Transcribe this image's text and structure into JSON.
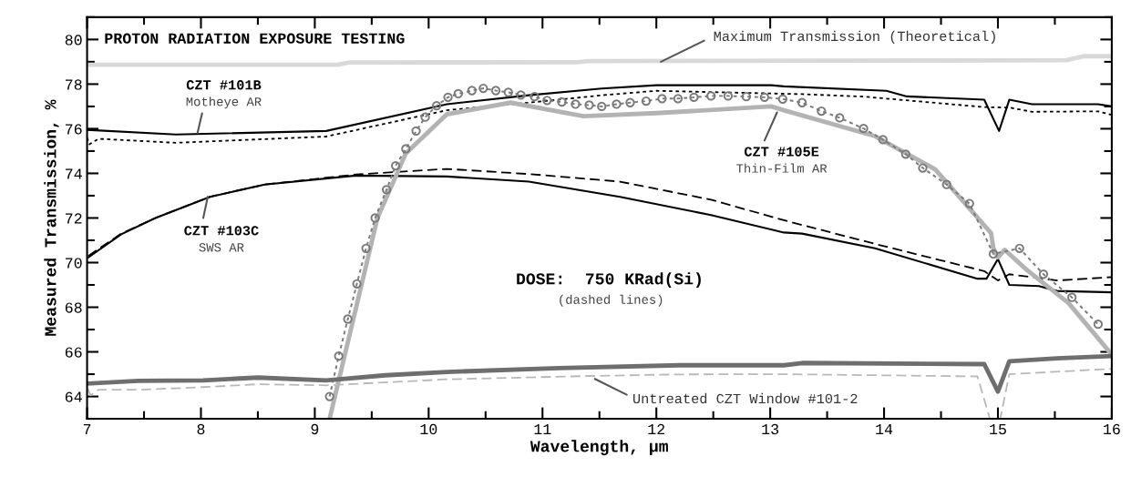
{
  "chart_data": {
    "type": "line",
    "xlabel": "Wavelength, µm",
    "ylabel": "Measured Transmission, %",
    "xlim": [
      7,
      16
    ],
    "ylim": [
      63,
      81
    ],
    "xticks": [
      7,
      {
        "value": 7.5,
        "label": null
      },
      8,
      {
        "value": 8.5,
        "label": null
      },
      9,
      {
        "value": 9.5,
        "label": null
      },
      10,
      {
        "value": 10.5,
        "label": null
      },
      11,
      {
        "value": 11.5,
        "label": null
      },
      12,
      {
        "value": 12.5,
        "label": null
      },
      13,
      {
        "value": 13.5,
        "label": null
      },
      14,
      {
        "value": 14.5,
        "label": null
      },
      15,
      {
        "value": 15.5,
        "label": null
      },
      16
    ],
    "yticks": [
      {
        "value": 63,
        "label": null
      },
      64,
      {
        "value": 65,
        "label": null
      },
      66,
      {
        "value": 67,
        "label": null
      },
      68,
      {
        "value": 69,
        "label": null
      },
      70,
      {
        "value": 71,
        "label": null
      },
      72,
      {
        "value": 73,
        "label": null
      },
      74,
      {
        "value": 75,
        "label": null
      },
      76,
      {
        "value": 77,
        "label": null
      },
      78,
      {
        "value": 79,
        "label": null
      },
      80,
      {
        "value": 81,
        "label": null
      }
    ],
    "grid": false,
    "legend": false,
    "series": [
      {
        "color": "#d9d9d9",
        "line_style": "solid",
        "x": [
          7,
          9.2,
          9.3,
          11.3,
          11.4,
          15.6,
          15.75,
          16
        ],
        "values": [
          78.87,
          78.87,
          78.97,
          78.98,
          79.03,
          79.07,
          79.25,
          79.25
        ]
      },
      {
        "color": "#000000",
        "line_style": "solid",
        "x": [
          7,
          7.78,
          9.1,
          10.16,
          10.88,
          11.52,
          12.0,
          13.01,
          13.12,
          14.02,
          14.2,
          14.88,
          15.01,
          15.1,
          15.3,
          15.88,
          16
        ],
        "values": [
          75.95,
          75.74,
          75.9,
          77.1,
          77.5,
          77.8,
          77.95,
          77.95,
          77.9,
          77.7,
          77.45,
          77.3,
          75.9,
          77.3,
          77.1,
          77.1,
          77.0
        ]
      },
      {
        "color": "#000000",
        "line_style": "dotted",
        "x": [
          7,
          7.02,
          7.1,
          7.78,
          9.1,
          10.16,
          10.88,
          11.52,
          12.0,
          13.28,
          13.82,
          14.88,
          15.1,
          15.3,
          15.88,
          16
        ],
        "values": [
          75.6,
          75.3,
          75.55,
          75.37,
          75.65,
          76.83,
          77.17,
          77.5,
          77.7,
          77.55,
          77.44,
          76.97,
          76.95,
          76.76,
          76.78,
          76.62
        ]
      },
      {
        "color": "#000000",
        "line_style": "solid",
        "x": [
          7.01,
          7.3,
          7.6,
          8.08,
          8.56,
          9.36,
          10.16,
          10.88,
          11.68,
          12.48,
          13.12,
          13.28,
          13.92,
          14.82,
          14.9,
          15.0,
          15.1,
          15.36,
          15.52,
          16
        ],
        "values": [
          70.23,
          71.27,
          72.0,
          72.95,
          73.5,
          73.9,
          73.86,
          73.63,
          72.95,
          72.13,
          71.35,
          71.3,
          70.64,
          69.28,
          69.28,
          70.16,
          69.0,
          68.95,
          68.73,
          68.67
        ]
      },
      {
        "color": "#000000",
        "line_style": "dashed",
        "x": [
          7.01,
          7.3,
          7.6,
          8.08,
          8.56,
          9.36,
          10.16,
          10.88,
          11.68,
          12.48,
          13.12,
          13.92,
          14.88,
          15.0,
          15.1,
          15.52,
          16
        ],
        "values": [
          70.3,
          71.3,
          72.0,
          72.95,
          73.5,
          73.95,
          74.2,
          73.97,
          73.63,
          72.82,
          71.9,
          70.84,
          69.62,
          69.2,
          69.48,
          69.2,
          69.35
        ]
      },
      {
        "color": "#b3b3b3",
        "line_style": "solid",
        "x": [
          9.13,
          9.55,
          9.8,
          10.16,
          10.72,
          11.36,
          12.0,
          13.01,
          13.12,
          13.92,
          14.45,
          14.94,
          14.96,
          15.0,
          15.06,
          15.25,
          15.62,
          16
        ],
        "values": [
          63.0,
          72.0,
          74.9,
          76.65,
          77.17,
          76.56,
          76.7,
          77.0,
          76.83,
          75.67,
          74.18,
          71.32,
          70.65,
          70.24,
          70.57,
          69.69,
          68.19,
          65.88
        ]
      },
      {
        "color": "#7a7a7a",
        "line_style": "dotted",
        "marker": "circle",
        "x": [
          9.13,
          9.21,
          9.29,
          9.37,
          9.45,
          9.53,
          9.63,
          9.71,
          9.8,
          9.89,
          9.97,
          10.07,
          10.17,
          10.26,
          10.38,
          10.48,
          10.59,
          10.7,
          10.81,
          10.93,
          11.04,
          11.17,
          11.29,
          11.41,
          11.52,
          11.65,
          11.77,
          11.91,
          12.05,
          12.19,
          12.33,
          12.48,
          12.63,
          12.79,
          12.95,
          13.11,
          13.28,
          13.45,
          13.61,
          13.82,
          13.99,
          14.19,
          14.34,
          14.55,
          14.75,
          14.96,
          15.19,
          15.4,
          15.65,
          15.88
        ],
        "values": [
          64.0,
          65.81,
          67.47,
          69.05,
          70.64,
          72.0,
          73.27,
          74.34,
          75.1,
          75.9,
          76.52,
          77.03,
          77.41,
          77.57,
          77.71,
          77.81,
          77.71,
          77.63,
          77.51,
          77.44,
          77.27,
          77.2,
          77.1,
          77.06,
          77.0,
          77.1,
          77.17,
          77.24,
          77.35,
          77.35,
          77.41,
          77.47,
          77.47,
          77.44,
          77.41,
          77.33,
          77.17,
          76.79,
          76.49,
          76.01,
          75.51,
          74.86,
          74.24,
          73.5,
          72.65,
          70.39,
          70.64,
          69.48,
          68.44,
          67.24
        ]
      },
      {
        "color": "#6e6e6e",
        "line_style": "solid",
        "x": [
          7.01,
          7.45,
          8.02,
          8.5,
          9.1,
          9.62,
          10.16,
          11.14,
          12.2,
          13.12,
          13.28,
          14.88,
          15.0,
          15.1,
          15.52,
          16
        ],
        "values": [
          64.58,
          64.7,
          64.72,
          64.85,
          64.72,
          64.95,
          65.1,
          65.27,
          65.4,
          65.4,
          65.5,
          65.45,
          64.22,
          65.58,
          65.71,
          65.81
        ]
      },
      {
        "color": "#b8b8b8",
        "line_style": "dashed",
        "x": [
          7.01,
          7.03,
          7.1,
          7.45,
          8.02,
          8.5,
          9.1,
          10.16,
          11.42,
          12.2,
          13.12,
          14.82,
          14.93,
          15.02,
          15.1,
          16
        ],
        "values": [
          64.33,
          64.05,
          64.3,
          64.3,
          64.42,
          64.55,
          64.5,
          64.77,
          64.92,
          64.99,
          65.0,
          64.9,
          63.0,
          63.0,
          65.0,
          65.24
        ]
      }
    ],
    "annotations": [
      "PROTON RADIATION EXPOSURE TESTING",
      {
        "text": "Maximum Transmission (Theoretical)",
        "x": 12.04,
        "y": 79.0
      },
      "CZT #101B",
      {
        "text": "Motheye AR",
        "x": 7.97,
        "y": 75.81
      },
      {
        "text": "CZT #103C",
        "x": 8.06,
        "y": 72.95
      },
      "SWS AR",
      {
        "text": "CZT #105E",
        "x": 13.06,
        "y": 76.73
      },
      "Thin-Film AR",
      "DOSE:  750 KRad(Si)",
      "(dashed lines)",
      {
        "text": "Untreated CZT Window #101-2",
        "x": 11.46,
        "y": 64.79
      }
    ]
  }
}
